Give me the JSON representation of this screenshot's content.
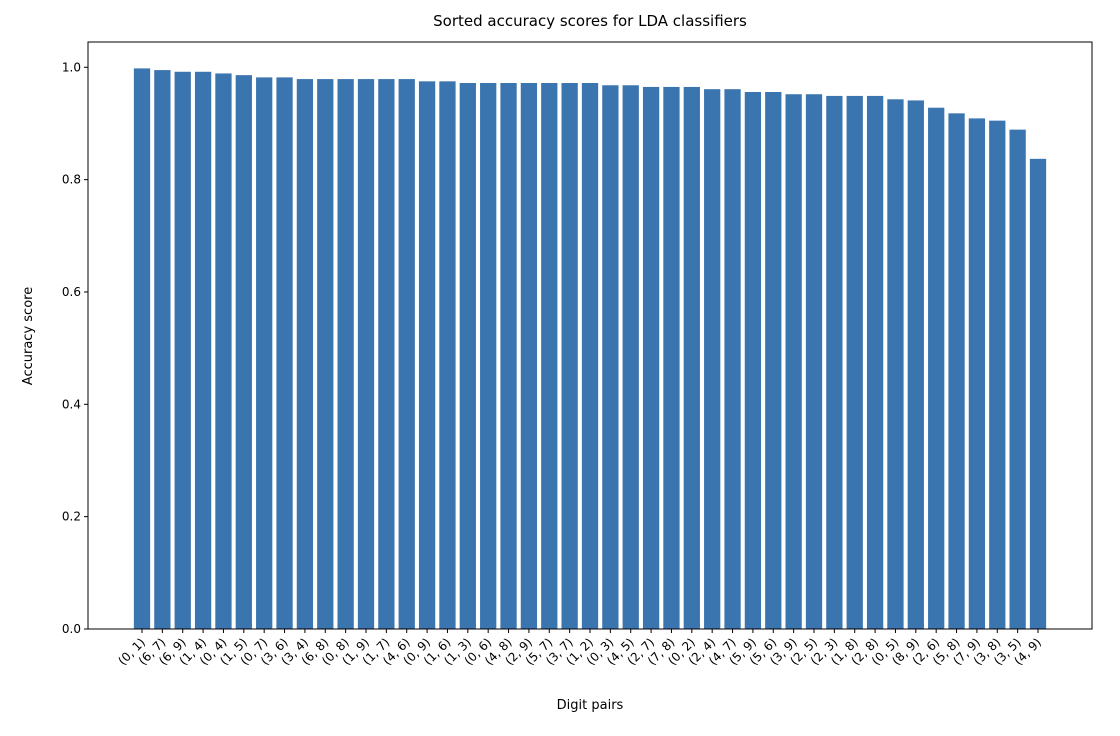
{
  "chart_data": {
    "type": "bar",
    "title": "Sorted accuracy scores for LDA classifiers",
    "xlabel": "Digit pairs",
    "ylabel": "Accuracy score",
    "color": "#3b75af",
    "categories": [
      "(0, 1)",
      "(6, 7)",
      "(6, 9)",
      "(1, 4)",
      "(0, 4)",
      "(1, 5)",
      "(0, 7)",
      "(3, 6)",
      "(3, 4)",
      "(6, 8)",
      "(0, 8)",
      "(1, 9)",
      "(1, 7)",
      "(4, 6)",
      "(0, 9)",
      "(1, 6)",
      "(1, 3)",
      "(0, 6)",
      "(4, 8)",
      "(2, 9)",
      "(5, 7)",
      "(3, 7)",
      "(1, 2)",
      "(0, 3)",
      "(4, 5)",
      "(2, 7)",
      "(7, 8)",
      "(0, 2)",
      "(2, 4)",
      "(4, 7)",
      "(5, 9)",
      "(5, 6)",
      "(3, 9)",
      "(2, 5)",
      "(2, 3)",
      "(1, 8)",
      "(2, 8)",
      "(0, 5)",
      "(8, 9)",
      "(2, 6)",
      "(5, 8)",
      "(7, 9)",
      "(3, 8)",
      "(3, 5)",
      "(4, 9)"
    ],
    "values": [
      0.998,
      0.995,
      0.992,
      0.992,
      0.989,
      0.986,
      0.982,
      0.982,
      0.979,
      0.979,
      0.979,
      0.979,
      0.979,
      0.979,
      0.975,
      0.975,
      0.972,
      0.972,
      0.972,
      0.972,
      0.972,
      0.972,
      0.972,
      0.968,
      0.968,
      0.965,
      0.965,
      0.965,
      0.961,
      0.961,
      0.956,
      0.956,
      0.952,
      0.952,
      0.949,
      0.949,
      0.949,
      0.943,
      0.941,
      0.928,
      0.918,
      0.909,
      0.905,
      0.889,
      0.837
    ],
    "ylim": [
      0,
      1.045
    ],
    "yticks": [
      {
        "value": 0,
        "label": "0.0"
      },
      0.2,
      0.4,
      0.6,
      0.8,
      {
        "value": 1,
        "label": "1.0"
      }
    ]
  }
}
